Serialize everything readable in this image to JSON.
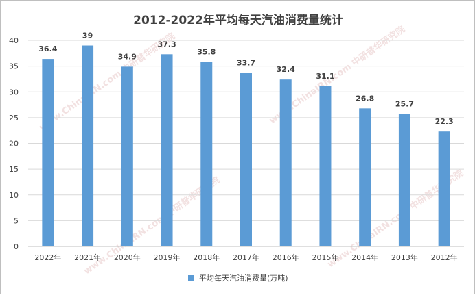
{
  "chart_data": {
    "type": "bar",
    "title": "2012-2022年平均每天汽油消费量统计",
    "categories": [
      "2022年",
      "2021年",
      "2020年",
      "2019年",
      "2018年",
      "2017年",
      "2016年",
      "2015年",
      "2014年",
      "2013年",
      "2012年"
    ],
    "series": [
      {
        "name": "平均每天汽油消费量(万吨)",
        "values": [
          36.4,
          39,
          34.9,
          37.3,
          35.8,
          33.7,
          32.4,
          31.1,
          26.8,
          25.7,
          22.3
        ]
      }
    ],
    "ylim": [
      0,
      40
    ],
    "yticks": [
      0,
      5,
      10,
      15,
      20,
      25,
      30,
      35,
      40
    ],
    "grid": true,
    "legend_position": "bottom",
    "bar_color": "#5b9bd5",
    "watermark_text": "www.ChinaIRN.com 中研普华研究院"
  }
}
